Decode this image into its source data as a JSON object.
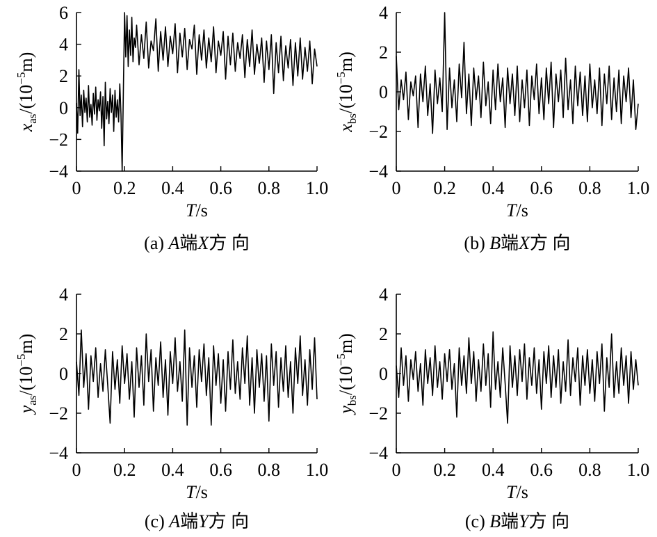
{
  "chart_data": [
    {
      "type": "line",
      "panel": "a",
      "caption_prefix": "(a) ",
      "caption_letter": "A",
      "caption_mid": "端",
      "caption_axis": "X",
      "caption_suffix": "方 向",
      "ylabel_var": "x",
      "ylabel_sub": "as",
      "ylabel_unit_pre": "/(10",
      "ylabel_unit_exp": "−5",
      "ylabel_unit_post": "m)",
      "xlabel_var": "T",
      "xlabel_unit": "/s",
      "xlim": [
        0,
        1.0
      ],
      "ylim": [
        -4,
        6
      ],
      "xticks": [
        "0",
        "0.2",
        "0.4",
        "0.6",
        "0.8",
        "1.0"
      ],
      "yticks": [
        "−4",
        "−2",
        "0",
        "2",
        "4",
        "6"
      ],
      "series": [
        {
          "x": [
            0,
            0.005,
            0.01,
            0.015,
            0.02,
            0.025,
            0.03,
            0.035,
            0.04,
            0.045,
            0.05,
            0.055,
            0.06,
            0.065,
            0.07,
            0.075,
            0.08,
            0.085,
            0.09,
            0.095,
            0.1,
            0.105,
            0.11,
            0.115,
            0.12,
            0.125,
            0.13,
            0.135,
            0.14,
            0.145,
            0.15,
            0.155,
            0.16,
            0.165,
            0.17,
            0.175,
            0.18,
            0.185,
            0.19,
            0.195,
            0.2,
            0.205,
            0.21,
            0.215,
            0.22,
            0.225,
            0.23,
            0.235,
            0.24,
            0.245,
            0.25,
            0.26,
            0.27,
            0.28,
            0.29,
            0.3,
            0.31,
            0.32,
            0.33,
            0.34,
            0.35,
            0.36,
            0.37,
            0.38,
            0.39,
            0.4,
            0.41,
            0.42,
            0.43,
            0.44,
            0.45,
            0.46,
            0.47,
            0.48,
            0.49,
            0.5,
            0.51,
            0.52,
            0.53,
            0.54,
            0.55,
            0.56,
            0.57,
            0.58,
            0.59,
            0.6,
            0.61,
            0.62,
            0.63,
            0.64,
            0.65,
            0.66,
            0.67,
            0.68,
            0.69,
            0.7,
            0.71,
            0.72,
            0.73,
            0.74,
            0.75,
            0.76,
            0.77,
            0.78,
            0.79,
            0.8,
            0.81,
            0.82,
            0.83,
            0.84,
            0.85,
            0.86,
            0.87,
            0.88,
            0.89,
            0.9,
            0.91,
            0.92,
            0.93,
            0.94,
            0.95,
            0.96,
            0.97,
            0.98,
            0.99,
            1.0
          ],
          "y": [
            0.3,
            -1.6,
            2.4,
            -0.5,
            0.8,
            -1.2,
            1.1,
            -0.3,
            0.6,
            -0.9,
            1.4,
            -0.6,
            0.2,
            -1.1,
            0.9,
            -0.4,
            1.3,
            -0.8,
            0.5,
            -0.2,
            1.0,
            -1.3,
            0.7,
            -2.4,
            1.6,
            -0.7,
            0.4,
            -1.0,
            1.2,
            -0.3,
            0.8,
            -1.5,
            1.1,
            -0.6,
            0.5,
            -0.9,
            1.5,
            -0.4,
            -4.0,
            1.2,
            6.0,
            3.2,
            5.8,
            2.6,
            4.9,
            3.3,
            5.7,
            2.9,
            4.4,
            3.8,
            5.2,
            2.7,
            4.6,
            3.1,
            5.4,
            2.5,
            4.2,
            3.6,
            5.6,
            2.3,
            4.8,
            3.0,
            5.1,
            2.6,
            4.5,
            3.4,
            5.3,
            2.2,
            4.7,
            3.2,
            5.0,
            2.4,
            4.3,
            3.7,
            5.2,
            2.1,
            4.6,
            3.0,
            4.9,
            2.5,
            4.4,
            2.9,
            5.1,
            2.2,
            4.2,
            3.3,
            4.8,
            1.8,
            4.5,
            2.7,
            4.7,
            2.3,
            4.1,
            3.1,
            4.6,
            1.9,
            4.3,
            2.6,
            4.9,
            2.1,
            4.0,
            2.8,
            4.4,
            1.6,
            4.2,
            2.4,
            4.6,
            0.9,
            4.1,
            2.2,
            4.5,
            1.7,
            3.9,
            2.5,
            4.3,
            1.4,
            4.1,
            2.0,
            4.4,
            1.8,
            3.8,
            2.3,
            4.2,
            1.5,
            3.7,
            2.6
          ]
        }
      ]
    },
    {
      "type": "line",
      "panel": "b",
      "caption_prefix": "(b) ",
      "caption_letter": "B",
      "caption_mid": "端",
      "caption_axis": "X",
      "caption_suffix": "方 向",
      "ylabel_var": "x",
      "ylabel_sub": "bs",
      "ylabel_unit_pre": "/(10",
      "ylabel_unit_exp": "−5",
      "ylabel_unit_post": "m)",
      "xlabel_var": "T",
      "xlabel_unit": "/s",
      "xlim": [
        0,
        1.0
      ],
      "ylim": [
        -4,
        4
      ],
      "xticks": [
        "0",
        "0.2",
        "0.4",
        "0.6",
        "0.8",
        "1.0"
      ],
      "yticks": [
        "−4",
        "−2",
        "0",
        "2",
        "4"
      ],
      "series": [
        {
          "x": [
            0,
            0.01,
            0.02,
            0.03,
            0.04,
            0.05,
            0.06,
            0.07,
            0.08,
            0.09,
            0.1,
            0.11,
            0.12,
            0.13,
            0.14,
            0.15,
            0.16,
            0.17,
            0.18,
            0.19,
            0.2,
            0.21,
            0.22,
            0.23,
            0.24,
            0.25,
            0.26,
            0.27,
            0.28,
            0.29,
            0.3,
            0.31,
            0.32,
            0.33,
            0.34,
            0.35,
            0.36,
            0.37,
            0.38,
            0.39,
            0.4,
            0.41,
            0.42,
            0.43,
            0.44,
            0.45,
            0.46,
            0.47,
            0.48,
            0.49,
            0.5,
            0.51,
            0.52,
            0.53,
            0.54,
            0.55,
            0.56,
            0.57,
            0.58,
            0.59,
            0.6,
            0.61,
            0.62,
            0.63,
            0.64,
            0.65,
            0.66,
            0.67,
            0.68,
            0.69,
            0.7,
            0.71,
            0.72,
            0.73,
            0.74,
            0.75,
            0.76,
            0.77,
            0.78,
            0.79,
            0.8,
            0.81,
            0.82,
            0.83,
            0.84,
            0.85,
            0.86,
            0.87,
            0.88,
            0.89,
            0.9,
            0.91,
            0.92,
            0.93,
            0.94,
            0.95,
            0.96,
            0.97,
            0.98,
            0.99,
            1.0
          ],
          "y": [
            1.8,
            -0.9,
            0.6,
            -0.4,
            1.0,
            -1.4,
            0.5,
            -0.2,
            0.8,
            -1.8,
            0.9,
            -0.5,
            1.3,
            -1.2,
            0.4,
            -2.1,
            1.1,
            -0.6,
            0.7,
            -1.0,
            4.0,
            -1.9,
            1.2,
            -0.8,
            0.6,
            -1.5,
            1.4,
            -0.3,
            2.5,
            -1.1,
            0.9,
            -1.7,
            1.2,
            -0.4,
            0.8,
            -1.3,
            1.5,
            -0.7,
            0.5,
            -1.6,
            1.1,
            -0.9,
            1.4,
            -0.5,
            0.7,
            -1.8,
            1.2,
            -0.6,
            0.9,
            -1.2,
            1.3,
            -1.5,
            0.6,
            -0.8,
            1.1,
            -1.7,
            0.8,
            -0.4,
            1.4,
            -1.1,
            0.7,
            -1.4,
            1.2,
            -0.6,
            1.5,
            -1.8,
            0.9,
            -0.5,
            1.1,
            -1.3,
            1.7,
            -0.9,
            0.6,
            -1.6,
            1.3,
            -0.7,
            1.0,
            -1.2,
            0.8,
            -1.5,
            1.4,
            -0.8,
            0.6,
            -1.1,
            1.2,
            -1.7,
            0.9,
            -0.6,
            1.3,
            -1.4,
            0.7,
            -1.0,
            1.1,
            -1.6,
            0.8,
            -0.5,
            1.2,
            -1.3,
            0.6,
            -1.9,
            -0.6
          ]
        }
      ]
    },
    {
      "type": "line",
      "panel": "c",
      "caption_prefix": "(c) ",
      "caption_letter": "A",
      "caption_mid": "端",
      "caption_axis": "Y",
      "caption_suffix": "方 向",
      "ylabel_var": "y",
      "ylabel_sub": "as",
      "ylabel_unit_pre": "/(10",
      "ylabel_unit_exp": "−5",
      "ylabel_unit_post": "m)",
      "xlabel_var": "T",
      "xlabel_unit": "/s",
      "xlim": [
        0,
        1.0
      ],
      "ylim": [
        -4,
        4
      ],
      "xticks": [
        "0",
        "0.2",
        "0.4",
        "0.6",
        "0.8",
        "1.0"
      ],
      "yticks": [
        "−4",
        "−2",
        "0",
        "2",
        "4"
      ],
      "series": [
        {
          "x": [
            0,
            0.01,
            0.02,
            0.03,
            0.04,
            0.05,
            0.06,
            0.07,
            0.08,
            0.09,
            0.1,
            0.11,
            0.12,
            0.13,
            0.14,
            0.15,
            0.16,
            0.17,
            0.18,
            0.19,
            0.2,
            0.21,
            0.22,
            0.23,
            0.24,
            0.25,
            0.26,
            0.27,
            0.28,
            0.29,
            0.3,
            0.31,
            0.32,
            0.33,
            0.34,
            0.35,
            0.36,
            0.37,
            0.38,
            0.39,
            0.4,
            0.41,
            0.42,
            0.43,
            0.44,
            0.45,
            0.46,
            0.47,
            0.48,
            0.49,
            0.5,
            0.51,
            0.52,
            0.53,
            0.54,
            0.55,
            0.56,
            0.57,
            0.58,
            0.59,
            0.6,
            0.61,
            0.62,
            0.63,
            0.64,
            0.65,
            0.66,
            0.67,
            0.68,
            0.69,
            0.7,
            0.71,
            0.72,
            0.73,
            0.74,
            0.75,
            0.76,
            0.77,
            0.78,
            0.79,
            0.8,
            0.81,
            0.82,
            0.83,
            0.84,
            0.85,
            0.86,
            0.87,
            0.88,
            0.89,
            0.9,
            0.91,
            0.92,
            0.93,
            0.94,
            0.95,
            0.96,
            0.97,
            0.98,
            0.99,
            1.0
          ],
          "y": [
            0.6,
            -1.1,
            2.2,
            -0.7,
            1.0,
            -1.8,
            0.9,
            -0.4,
            1.3,
            -1.2,
            0.5,
            -0.9,
            1.2,
            -0.6,
            -2.5,
            1.1,
            -0.8,
            0.7,
            -1.5,
            1.4,
            -0.5,
            1.0,
            -1.3,
            0.6,
            -2.2,
            1.3,
            -0.7,
            0.9,
            -1.6,
            2.0,
            -0.4,
            1.2,
            -1.9,
            0.8,
            -0.6,
            1.6,
            -1.2,
            0.7,
            -2.1,
            1.1,
            -0.5,
            1.8,
            -0.9,
            0.6,
            -1.4,
            2.2,
            -2.6,
            1.3,
            -0.7,
            0.9,
            -1.7,
            1.2,
            -0.4,
            1.5,
            -1.1,
            0.8,
            -2.6,
            1.4,
            -0.6,
            1.0,
            -1.5,
            0.7,
            -1.9,
            1.1,
            -0.8,
            1.7,
            -1.0,
            0.6,
            -1.3,
            1.3,
            -0.5,
            1.9,
            -1.6,
            0.8,
            -2.0,
            1.2,
            -0.7,
            1.0,
            -1.4,
            0.9,
            -2.4,
            1.5,
            -0.6,
            1.1,
            -1.7,
            0.8,
            -0.9,
            1.4,
            -1.2,
            0.6,
            -2.0,
            1.3,
            -0.5,
            1.9,
            -1.1,
            0.7,
            -1.6,
            1.2,
            -0.8,
            1.8,
            -1.3
          ]
        }
      ]
    },
    {
      "type": "line",
      "panel": "d",
      "caption_prefix": "(c) ",
      "caption_letter": "B",
      "caption_mid": "端",
      "caption_axis": "Y",
      "caption_suffix": "方 向",
      "ylabel_var": "y",
      "ylabel_sub": "bs",
      "ylabel_unit_pre": "/(10",
      "ylabel_unit_exp": "−5",
      "ylabel_unit_post": "m)",
      "xlabel_var": "T",
      "xlabel_unit": "/s",
      "xlim": [
        0,
        1.0
      ],
      "ylim": [
        -4,
        4
      ],
      "xticks": [
        "0",
        "0.2",
        "0.4",
        "0.6",
        "0.8",
        "1.0"
      ],
      "yticks": [
        "−4",
        "−2",
        "0",
        "2",
        "4"
      ],
      "series": [
        {
          "x": [
            0,
            0.01,
            0.02,
            0.03,
            0.04,
            0.05,
            0.06,
            0.07,
            0.08,
            0.09,
            0.1,
            0.11,
            0.12,
            0.13,
            0.14,
            0.15,
            0.16,
            0.17,
            0.18,
            0.19,
            0.2,
            0.21,
            0.22,
            0.23,
            0.24,
            0.25,
            0.26,
            0.27,
            0.28,
            0.29,
            0.3,
            0.31,
            0.32,
            0.33,
            0.34,
            0.35,
            0.36,
            0.37,
            0.38,
            0.39,
            0.4,
            0.41,
            0.42,
            0.43,
            0.44,
            0.45,
            0.46,
            0.47,
            0.48,
            0.49,
            0.5,
            0.51,
            0.52,
            0.53,
            0.54,
            0.55,
            0.56,
            0.57,
            0.58,
            0.59,
            0.6,
            0.61,
            0.62,
            0.63,
            0.64,
            0.65,
            0.66,
            0.67,
            0.68,
            0.69,
            0.7,
            0.71,
            0.72,
            0.73,
            0.74,
            0.75,
            0.76,
            0.77,
            0.78,
            0.79,
            0.8,
            0.81,
            0.82,
            0.83,
            0.84,
            0.85,
            0.86,
            0.87,
            0.88,
            0.89,
            0.9,
            0.91,
            0.92,
            0.93,
            0.94,
            0.95,
            0.96,
            0.97,
            0.98,
            0.99,
            1.0
          ],
          "y": [
            0.4,
            -1.2,
            1.3,
            -0.6,
            0.9,
            -1.4,
            0.7,
            -0.3,
            1.1,
            -0.9,
            0.5,
            -1.6,
            1.2,
            -0.5,
            0.8,
            -1.1,
            1.4,
            -0.7,
            0.6,
            -1.3,
            1.0,
            -0.4,
            1.2,
            -0.8,
            0.5,
            -2.2,
            1.3,
            -0.6,
            0.9,
            -1.0,
            1.8,
            -0.5,
            1.1,
            -1.4,
            0.7,
            -0.9,
            1.5,
            -0.6,
            1.0,
            -1.7,
            2.1,
            -0.8,
            0.6,
            -1.2,
            1.3,
            -0.5,
            -2.5,
            1.4,
            -0.7,
            0.9,
            -1.1,
            1.2,
            -0.4,
            1.5,
            -1.3,
            0.8,
            -0.6,
            1.3,
            -1.0,
            0.7,
            -1.8,
            1.1,
            -0.5,
            1.4,
            -1.2,
            0.9,
            -0.7,
            1.2,
            -1.5,
            0.6,
            -0.9,
            1.7,
            -1.1,
            0.8,
            -0.4,
            1.3,
            -1.6,
            0.9,
            -0.6,
            1.2,
            -1.0,
            0.7,
            -1.4,
            1.1,
            -0.5,
            1.5,
            -1.9,
            0.8,
            -0.7,
            2.0,
            -1.2,
            0.6,
            -1.0,
            1.3,
            -0.6,
            0.9,
            -1.5,
            1.1,
            -0.8,
            0.7,
            -0.6
          ]
        }
      ]
    }
  ]
}
